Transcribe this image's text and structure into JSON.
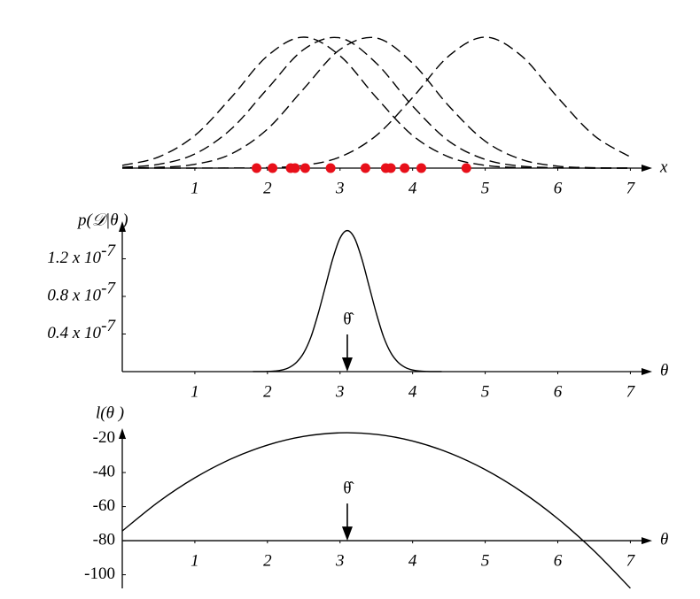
{
  "chart_data": [
    {
      "type": "line",
      "xlabel": "x",
      "x": [
        0,
        0.5,
        1,
        1.5,
        2,
        2.5,
        3,
        3.5,
        4,
        4.5,
        5,
        5.5,
        6,
        6.5,
        7
      ],
      "series": [
        {
          "color": "#000000",
          "values": [
            0.021,
            0.085,
            0.249,
            0.539,
            0.857,
            1,
            0.857,
            0.539,
            0.249,
            0.085,
            0.021,
            0.004,
            0.001,
            0,
            0
          ]
        },
        {
          "color": "#000000",
          "values": [
            0.006,
            0.029,
            0.108,
            0.298,
            0.606,
            0.906,
            0.994,
            0.801,
            0.474,
            0.206,
            0.066,
            0.015,
            0.003,
            0,
            0
          ]
        },
        {
          "color": "#000000",
          "values": [
            0.001,
            0.006,
            0.029,
            0.108,
            0.298,
            0.606,
            0.906,
            0.994,
            0.801,
            0.474,
            0.206,
            0.066,
            0.015,
            0.003,
            0
          ]
        },
        {
          "color": "#000000",
          "values": [
            0,
            0,
            0,
            0.001,
            0.004,
            0.021,
            0.085,
            0.249,
            0.539,
            0.857,
            1,
            0.857,
            0.539,
            0.249,
            0.085
          ]
        }
      ],
      "dashed": true,
      "points": {
        "color": "#e8101a",
        "x": [
          1.85,
          2.07,
          2.32,
          2.38,
          2.52,
          2.87,
          3.35,
          3.63,
          3.7,
          3.89,
          4.12,
          4.74
        ]
      },
      "xlim": [
        0,
        7.3
      ],
      "xticks": [
        1,
        2,
        3,
        4,
        5,
        6,
        7
      ],
      "ylim": [
        0,
        1
      ]
    },
    {
      "type": "line",
      "xlabel": "θ",
      "ylabel": "p(𝒟|θ )",
      "x": [
        1.8,
        1.9,
        2.0,
        2.1,
        2.2,
        2.3,
        2.4,
        2.5,
        2.6,
        2.7,
        2.8,
        2.9,
        3.0,
        3.1,
        3.2,
        3.3,
        3.4,
        3.5,
        3.6,
        3.7,
        3.8,
        3.9,
        4.0,
        4.1,
        4.2,
        4.3,
        4.4
      ],
      "values": [
        1.5e-11,
        4.5e-11,
        1.8e-10,
        5.9e-10,
        1.7e-09,
        4.4e-09,
        9.9e-09,
        2e-08,
        3.7e-08,
        6.2e-08,
        9.1e-08,
        1.2e-07,
        1.42e-07,
        1.5e-07,
        1.42e-07,
        1.2e-07,
        9.1e-08,
        6.2e-08,
        3.7e-08,
        2e-08,
        9.9e-09,
        4.4e-09,
        1.7e-09,
        5.9e-10,
        1.8e-10,
        4.5e-11,
        1.5e-11
      ],
      "color": "#000000",
      "annotation": {
        "text": "θ̂",
        "x": 3.1
      },
      "xlim": [
        0,
        7.3
      ],
      "xticks": [
        1,
        2,
        3,
        4,
        5,
        6,
        7
      ],
      "ylim": [
        0,
        1.6e-07
      ],
      "yticks": [
        {
          "value": 4e-08,
          "label": "0.4 x 10",
          "exponent": "-7"
        },
        {
          "value": 8e-08,
          "label": "0.8 x 10",
          "exponent": "-7"
        },
        {
          "value": 1.2e-07,
          "label": "1.2 x 10",
          "exponent": "-7"
        }
      ]
    },
    {
      "type": "line",
      "xlabel": "θ",
      "ylabel": "l(θ )",
      "x": [
        0,
        0.5,
        1,
        1.5,
        2,
        2.5,
        3,
        3.5,
        4,
        4.5,
        5,
        5.5,
        6,
        6.5,
        7
      ],
      "values": [
        -74.3,
        -57.2,
        -43.1,
        -32.0,
        -23.9,
        -18.8,
        -16.7,
        -17.6,
        -21.5,
        -28.4,
        -38.3,
        -51.2,
        -67.1,
        -86.0,
        -107.9
      ],
      "color": "#000000",
      "annotation": {
        "text": "θ̂",
        "x": 3.1
      },
      "xlim": [
        0,
        7.3
      ],
      "xticks": [
        1,
        2,
        3,
        4,
        5,
        6,
        7
      ],
      "ylim": [
        -108,
        -14
      ],
      "yticks": [
        -20,
        -40,
        -60,
        -80,
        -100
      ],
      "x_axis_at": -80
    }
  ]
}
